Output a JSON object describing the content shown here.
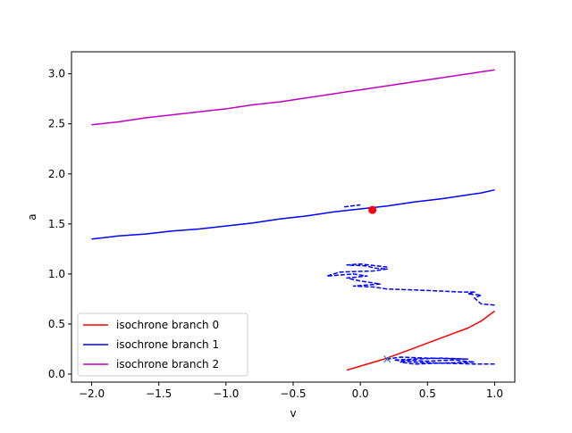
{
  "chart_data": {
    "type": "line",
    "title": "",
    "xlabel": "v",
    "ylabel": "a",
    "xlim": [
      -2.15,
      1.15
    ],
    "ylim": [
      -0.08,
      3.22
    ],
    "xticks": [
      -2.0,
      -1.5,
      -1.0,
      -0.5,
      0.0,
      0.5,
      1.0
    ],
    "xtick_labels": [
      "−2.0",
      "−1.5",
      "−1.0",
      "−0.5",
      "0.0",
      "0.5",
      "1.0"
    ],
    "yticks": [
      0.0,
      0.5,
      1.0,
      1.5,
      2.0,
      2.5,
      3.0
    ],
    "ytick_labels": [
      "0.0",
      "0.5",
      "1.0",
      "1.5",
      "2.0",
      "2.5",
      "3.0"
    ],
    "grid": false,
    "legend_position": "lower-left",
    "series": [
      {
        "name": "isochrone branch 0",
        "color": "#ff0000",
        "style": "solid",
        "x": [
          -0.1,
          0.0,
          0.2,
          0.4,
          0.6,
          0.8,
          0.9,
          1.0
        ],
        "y": [
          0.04,
          0.08,
          0.16,
          0.26,
          0.36,
          0.46,
          0.53,
          0.63
        ]
      },
      {
        "name": "isochrone branch 1",
        "color": "#0000ff",
        "style": "solid",
        "x": [
          -2.0,
          -1.8,
          -1.6,
          -1.4,
          -1.2,
          -1.0,
          -0.8,
          -0.6,
          -0.4,
          -0.2,
          0.0,
          0.2,
          0.4,
          0.6,
          0.8,
          0.9,
          1.0
        ],
        "y": [
          1.35,
          1.38,
          1.4,
          1.43,
          1.45,
          1.48,
          1.51,
          1.55,
          1.58,
          1.62,
          1.65,
          1.68,
          1.72,
          1.75,
          1.79,
          1.81,
          1.84
        ]
      },
      {
        "name": "isochrone branch 2",
        "color": "#bf00bf",
        "style": "solid",
        "x": [
          -2.0,
          -1.8,
          -1.6,
          -1.4,
          -1.2,
          -1.0,
          -0.8,
          -0.6,
          -0.4,
          -0.2,
          0.0,
          0.2,
          0.4,
          0.6,
          0.8,
          1.0
        ],
        "y": [
          2.49,
          2.52,
          2.56,
          2.59,
          2.62,
          2.65,
          2.69,
          2.72,
          2.76,
          2.8,
          2.84,
          2.88,
          2.92,
          2.96,
          3.0,
          3.04
        ]
      }
    ],
    "dashed_series": [
      {
        "color": "#0000ff",
        "style": "dashed",
        "x": [
          1.0,
          0.9,
          0.85,
          0.9,
          0.8,
          0.85,
          0.75,
          0.6,
          0.4,
          0.2,
          0.1,
          -0.05,
          0.15,
          0.0,
          -0.1,
          0.05,
          -0.05,
          -0.25,
          -0.15,
          0.1,
          0.2,
          0.1,
          0.05,
          -0.1,
          0.0,
          0.2
        ],
        "y": [
          0.69,
          0.7,
          0.76,
          0.79,
          0.8,
          0.82,
          0.82,
          0.83,
          0.84,
          0.85,
          0.87,
          0.88,
          0.9,
          0.93,
          0.96,
          0.98,
          1.0,
          0.98,
          1.02,
          1.03,
          1.05,
          1.06,
          1.08,
          1.09,
          1.1,
          1.07
        ]
      },
      {
        "color": "#0000ff",
        "style": "dashed",
        "x": [
          -0.12,
          0.0
        ],
        "y": [
          1.67,
          1.69
        ]
      },
      {
        "color": "#0000ff",
        "style": "dashed",
        "x": [
          1.0,
          0.85,
          0.6,
          0.4,
          0.3,
          0.35,
          0.5,
          0.7,
          0.85,
          0.6,
          0.4,
          0.25,
          0.4,
          0.6,
          0.8,
          0.5,
          0.3,
          0.2
        ],
        "y": [
          0.1,
          0.1,
          0.11,
          0.1,
          0.12,
          0.14,
          0.13,
          0.14,
          0.12,
          0.11,
          0.12,
          0.14,
          0.15,
          0.16,
          0.15,
          0.16,
          0.17,
          0.15
        ]
      }
    ],
    "markers": [
      {
        "shape": "circle",
        "color": "#ff0000",
        "x": 0.09,
        "y": 1.64
      },
      {
        "shape": "x",
        "color": "#1f77b4",
        "x": 0.2,
        "y": 0.15
      }
    ]
  }
}
